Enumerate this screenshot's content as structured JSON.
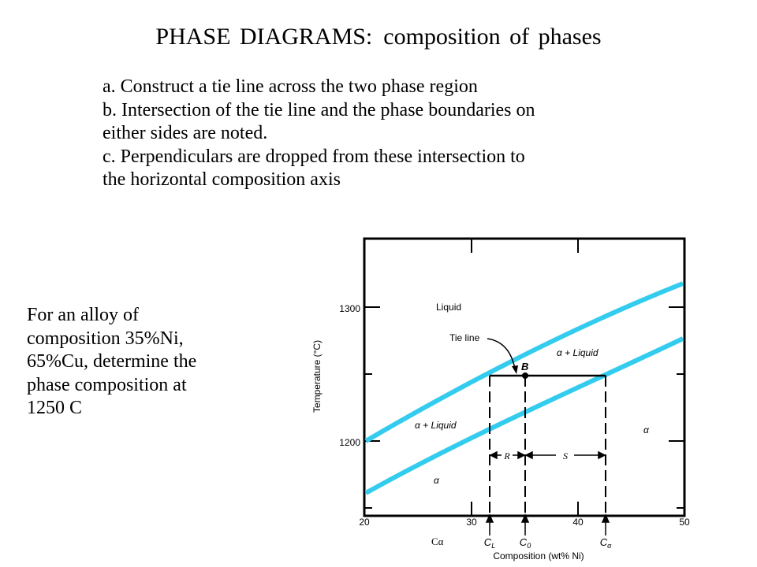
{
  "slide": {
    "title_part1": "PHASE DIAGRAMS:",
    "title_part2": "composition of phases",
    "steps": [
      "a. Construct a tie line across the two phase region",
      "b. Intersection of the tie line and the phase boundaries on",
      "either sides are noted.",
      "c. Perpendiculars are dropped from these intersection to",
      "the horizontal composition axis"
    ],
    "question_lines": [
      "For an alloy of",
      "composition 35%Ni,",
      "65%Cu, determine the",
      "phase composition at",
      "1250 C"
    ],
    "c_alpha_label": "Cα"
  },
  "diagram": {
    "ylabel": "Temperature (°C)",
    "xlabel": "Composition (wt% Ni)",
    "x_ticks": [
      "20",
      "30",
      "40",
      "50"
    ],
    "y_ticks": [
      "1300",
      "1200"
    ],
    "regions": {
      "liquid": "Liquid",
      "alpha_liquid_upper": "α + Liquid",
      "alpha_liquid_lower": "α + Liquid",
      "alpha_right": "α",
      "alpha_lower": "α"
    },
    "tie_line_label": "Tie line",
    "point_label": "B",
    "segment_labels": [
      "R",
      "S"
    ],
    "composition_labels": [
      "C",
      "C",
      "C"
    ],
    "composition_subscripts": [
      "L",
      "0",
      "α"
    ],
    "curve_color": "#33ccee"
  }
}
